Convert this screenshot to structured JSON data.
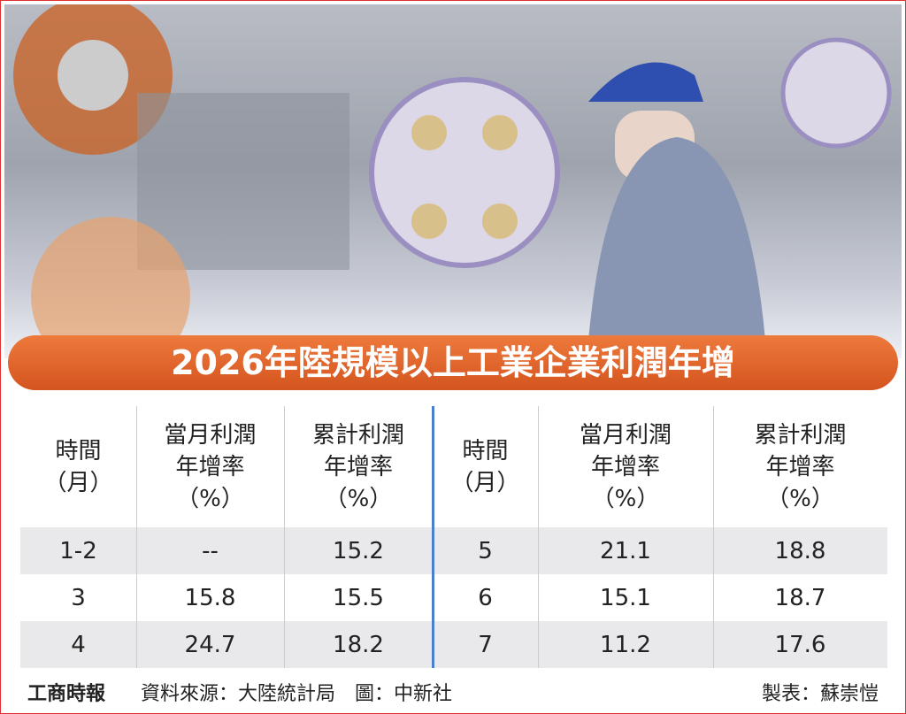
{
  "title": "2026年陸規模以上工業企業利潤年增",
  "table": {
    "halves": [
      {
        "header": [
          [
            "時間",
            "（月）"
          ],
          [
            "當月利潤",
            "年增率",
            "（%）"
          ],
          [
            "累計利潤",
            "年增率",
            "（%）"
          ]
        ],
        "rows": [
          [
            "1-2",
            "--",
            "15.2"
          ],
          [
            "3",
            "15.8",
            "15.5"
          ],
          [
            "4",
            "24.7",
            "18.2"
          ]
        ]
      },
      {
        "header": [
          [
            "時間",
            "（月）"
          ],
          [
            "當月利潤",
            "年增率",
            "（%）"
          ],
          [
            "累計利潤",
            "年增率",
            "（%）"
          ]
        ],
        "rows": [
          [
            "5",
            "21.1",
            "18.8"
          ],
          [
            "6",
            "15.1",
            "18.7"
          ],
          [
            "7",
            "11.2",
            "17.6"
          ]
        ]
      }
    ]
  },
  "footer": {
    "logo": "工商時報",
    "source": "資料來源：大陸統計局　圖：中新社",
    "credit": "製表：蘇崇愷"
  }
}
